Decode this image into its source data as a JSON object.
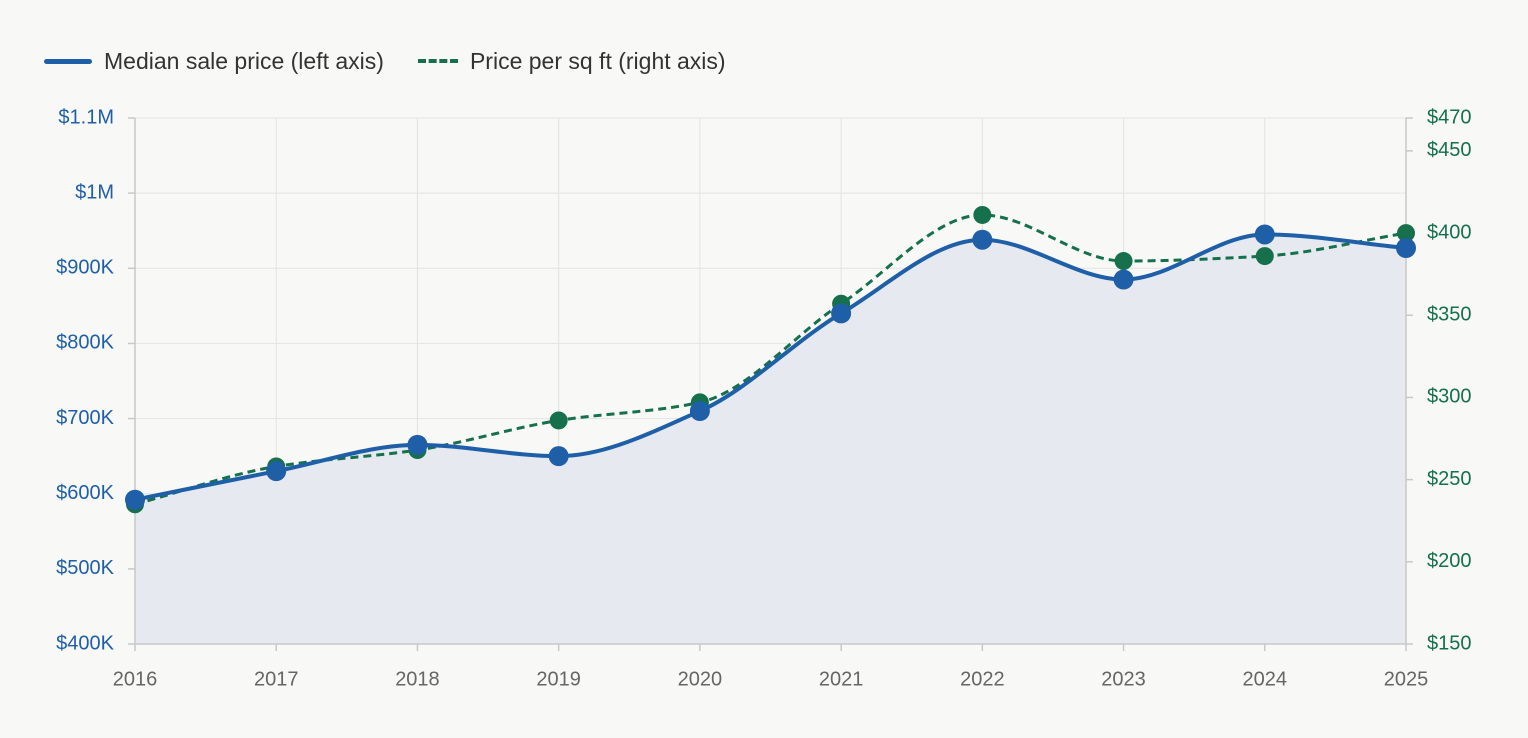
{
  "colors": {
    "median_line": "#1f5fa8",
    "price_sqft_line": "#15704b",
    "area_fill": "#e6eaf0",
    "grid": "#e3e3e3",
    "axis": "#c8c8c8",
    "x_tick_text": "#666666",
    "background": "#f8f8f6"
  },
  "chart_data": {
    "type": "line",
    "title": "",
    "grid": true,
    "legend_position": "top-left",
    "x": [
      "2016",
      "2017",
      "2018",
      "2019",
      "2020",
      "2021",
      "2022",
      "2023",
      "2024",
      "2025"
    ],
    "series": [
      {
        "name": "Median sale price (left axis)",
        "axis": "left",
        "style": "solid",
        "area_fill": true,
        "values": [
          592000,
          630000,
          665000,
          650000,
          710000,
          840000,
          938000,
          885000,
          945000,
          927000
        ]
      },
      {
        "name": "Price per sq ft (right axis)",
        "axis": "right",
        "style": "dashed",
        "area_fill": false,
        "values": [
          235,
          258,
          268,
          286,
          297,
          357,
          411,
          383,
          386,
          400
        ]
      }
    ],
    "left_axis": {
      "range": [
        400000,
        1100000
      ],
      "ticks": [
        400000,
        500000,
        600000,
        700000,
        800000,
        900000,
        1000000,
        1100000
      ],
      "tick_labels": [
        "$400K",
        "$500K",
        "$600K",
        "$700K",
        "$800K",
        "$900K",
        "$1M",
        "$1.1M"
      ]
    },
    "right_axis": {
      "range": [
        150,
        470
      ],
      "ticks": [
        150,
        200,
        250,
        300,
        350,
        400,
        450,
        470
      ],
      "tick_labels": [
        "$150",
        "$200",
        "$250",
        "$300",
        "$350",
        "$400",
        "$450",
        "$470"
      ]
    }
  }
}
